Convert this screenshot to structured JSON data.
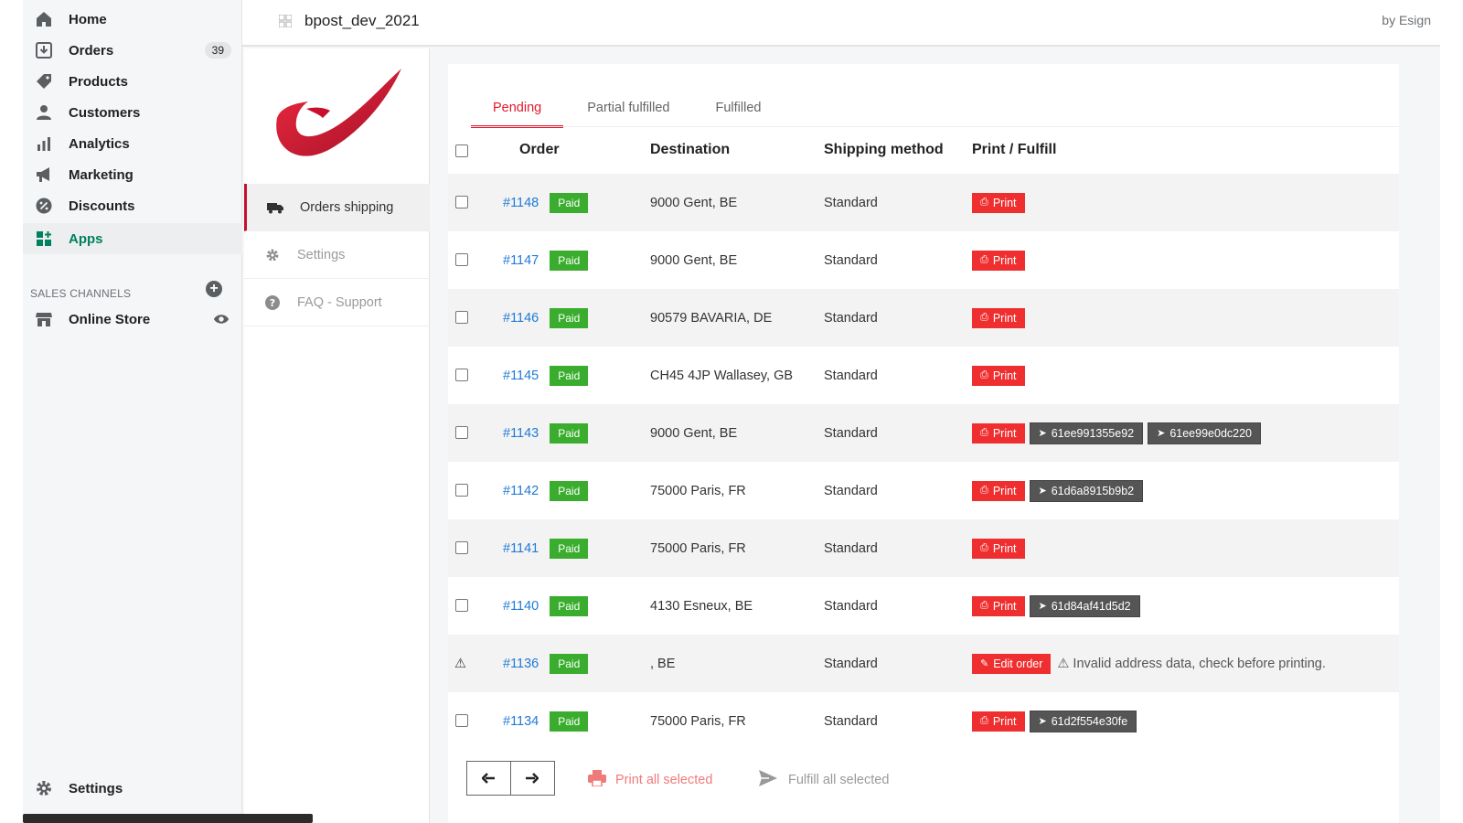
{
  "nav": {
    "items": [
      {
        "label": "Home",
        "icon": "home-icon"
      },
      {
        "label": "Orders",
        "icon": "orders-icon",
        "count": "39"
      },
      {
        "label": "Products",
        "icon": "tag-icon"
      },
      {
        "label": "Customers",
        "icon": "person-icon"
      },
      {
        "label": "Analytics",
        "icon": "bar-chart-icon"
      },
      {
        "label": "Marketing",
        "icon": "megaphone-icon"
      },
      {
        "label": "Discounts",
        "icon": "discount-icon"
      },
      {
        "label": "Apps",
        "icon": "apps-icon"
      }
    ],
    "sales_channels_title": "SALES CHANNELS",
    "online_store": "Online Store",
    "settings": "Settings"
  },
  "header": {
    "app_name": "bpost_dev_2021",
    "by": "by Esign"
  },
  "app_sidebar": {
    "items": [
      {
        "label": "Orders shipping"
      },
      {
        "label": "Settings"
      },
      {
        "label": "FAQ - Support"
      }
    ]
  },
  "tabs": [
    {
      "label": "Pending"
    },
    {
      "label": "Partial fulfilled"
    },
    {
      "label": "Fulfilled"
    }
  ],
  "table": {
    "headers": {
      "order": "Order",
      "destination": "Destination",
      "shipping": "Shipping method",
      "print": "Print / Fulfill"
    },
    "rows": [
      {
        "order": "#1148",
        "status": "Paid",
        "destination": "9000 Gent, BE",
        "shipping": "Standard",
        "action": "Print",
        "tracking": []
      },
      {
        "order": "#1147",
        "status": "Paid",
        "destination": "9000 Gent, BE",
        "shipping": "Standard",
        "action": "Print",
        "tracking": []
      },
      {
        "order": "#1146",
        "status": "Paid",
        "destination": "90579 BAVARIA, DE",
        "shipping": "Standard",
        "action": "Print",
        "tracking": []
      },
      {
        "order": "#1145",
        "status": "Paid",
        "destination": "CH45 4JP Wallasey, GB",
        "shipping": "Standard",
        "action": "Print",
        "tracking": []
      },
      {
        "order": "#1143",
        "status": "Paid",
        "destination": "9000 Gent, BE",
        "shipping": "Standard",
        "action": "Print",
        "tracking": [
          "61ee991355e92",
          "61ee99e0dc220"
        ]
      },
      {
        "order": "#1142",
        "status": "Paid",
        "destination": "75000 Paris, FR",
        "shipping": "Standard",
        "action": "Print",
        "tracking": [
          "61d6a8915b9b2"
        ]
      },
      {
        "order": "#1141",
        "status": "Paid",
        "destination": "75000 Paris, FR",
        "shipping": "Standard",
        "action": "Print",
        "tracking": []
      },
      {
        "order": "#1140",
        "status": "Paid",
        "destination": "4130 Esneux, BE",
        "shipping": "Standard",
        "action": "Print",
        "tracking": [
          "61d84af41d5d2"
        ]
      },
      {
        "order": "#1136",
        "status": "Paid",
        "destination": ", BE",
        "shipping": "Standard",
        "action": "Edit order",
        "warning": "Invalid address data, check before printing.",
        "tracking": []
      },
      {
        "order": "#1134",
        "status": "Paid",
        "destination": "75000 Paris, FR",
        "shipping": "Standard",
        "action": "Print",
        "tracking": [
          "61d2f554e30fe"
        ]
      }
    ]
  },
  "footer": {
    "print_all": "Print all selected",
    "fulfill_all": "Fulfill all selected"
  },
  "colors": {
    "bpost_red": "#e3182d",
    "print_button": "#ef2f2f",
    "paid_badge": "#3aad2e",
    "link": "#1f7ad6",
    "apps_green": "#008060"
  }
}
